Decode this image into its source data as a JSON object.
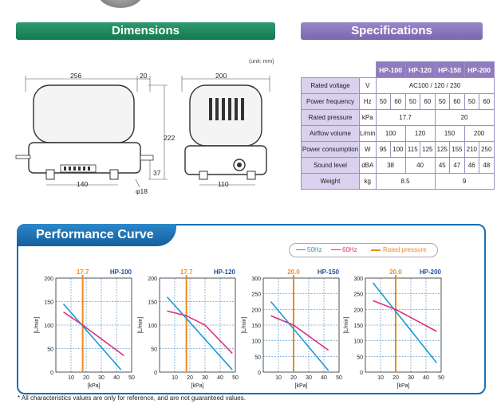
{
  "headers": {
    "dimensions": "Dimensions",
    "specifications": "Specifications",
    "performance": "Performance Curve"
  },
  "dimensions": {
    "unit": "(unit: mm)",
    "width_256": "256",
    "gap_20": "20",
    "depth_200": "200",
    "height_222": "222",
    "height_37": "37",
    "base_140": "140",
    "base_110": "110",
    "phi": "φ18"
  },
  "spec": {
    "models": [
      "HP-100",
      "HP-120",
      "HP-150",
      "HP-200"
    ],
    "rows": [
      {
        "label": "Rated voltage",
        "unit": "V",
        "cells": [
          "AC100 / 120 / 230"
        ],
        "span": [
          8
        ]
      },
      {
        "label": "Power frequency",
        "unit": "Hz",
        "cells": [
          "50",
          "60",
          "50",
          "60",
          "50",
          "60",
          "50",
          "60"
        ],
        "span": [
          1,
          1,
          1,
          1,
          1,
          1,
          1,
          1
        ]
      },
      {
        "label": "Rated pressure",
        "unit": "kPa",
        "cells": [
          "17.7",
          "20"
        ],
        "span": [
          4,
          4
        ]
      },
      {
        "label": "Airflow volume",
        "unit": "L/min",
        "cells": [
          "100",
          "120",
          "150",
          "200"
        ],
        "span": [
          2,
          2,
          2,
          2
        ]
      },
      {
        "label": "Power consumption",
        "unit": "W",
        "cells": [
          "95",
          "100",
          "115",
          "125",
          "125",
          "155",
          "210",
          "250"
        ],
        "span": [
          1,
          1,
          1,
          1,
          1,
          1,
          1,
          1
        ]
      },
      {
        "label": "Sound level",
        "unit": "dBA",
        "cells": [
          "38",
          "40",
          "45",
          "47",
          "46",
          "48"
        ],
        "span": [
          2,
          2,
          1,
          1,
          1,
          1
        ]
      },
      {
        "label": "Weight",
        "unit": "kg",
        "cells": [
          "8.5",
          "9"
        ],
        "span": [
          4,
          4
        ]
      }
    ]
  },
  "legend": {
    "hz50": "50Hz",
    "hz60": "60Hz",
    "rated": "Rated pressure"
  },
  "colors": {
    "hz50": "#1a9ad6",
    "hz60": "#e0307a",
    "rated": "#f08a1c",
    "grid": "#1b6fb4"
  },
  "footnote": "* All characteristics values are only for reference, and are not guaranteed values.",
  "chart_data": [
    {
      "type": "line",
      "title": "HP-100",
      "rated_pressure": 17.7,
      "rated_label": "17.7",
      "xlabel": "[kPa]",
      "ylabel": "[L/min]",
      "xlim": [
        0,
        50
      ],
      "ylim": [
        0,
        200
      ],
      "xticks": [
        10,
        20,
        30,
        40,
        50
      ],
      "yticks": [
        0,
        50,
        100,
        150,
        200
      ],
      "series": [
        {
          "name": "50Hz",
          "x": [
            5,
            43
          ],
          "y": [
            145,
            5
          ]
        },
        {
          "name": "60Hz",
          "x": [
            5,
            17.7,
            45
          ],
          "y": [
            128,
            100,
            35
          ]
        }
      ]
    },
    {
      "type": "line",
      "title": "HP-120",
      "rated_pressure": 17.7,
      "rated_label": "17.7",
      "xlabel": "[kPa]",
      "ylabel": "[L/min]",
      "xlim": [
        0,
        50
      ],
      "ylim": [
        0,
        200
      ],
      "xticks": [
        10,
        20,
        30,
        40,
        50
      ],
      "yticks": [
        0,
        50,
        100,
        150,
        200
      ],
      "series": [
        {
          "name": "50Hz",
          "x": [
            5,
            48
          ],
          "y": [
            160,
            5
          ]
        },
        {
          "name": "60Hz",
          "x": [
            5,
            17.7,
            30,
            48
          ],
          "y": [
            130,
            120,
            100,
            40
          ]
        }
      ]
    },
    {
      "type": "line",
      "title": "HP-150",
      "rated_pressure": 20.0,
      "rated_label": "20.0",
      "xlabel": "[kPa]",
      "ylabel": "[L/min]",
      "xlim": [
        0,
        50
      ],
      "ylim": [
        0,
        300
      ],
      "xticks": [
        10,
        20,
        30,
        40,
        50
      ],
      "yticks": [
        0,
        50,
        100,
        150,
        200,
        250,
        300
      ],
      "series": [
        {
          "name": "50Hz",
          "x": [
            5,
            43
          ],
          "y": [
            225,
            5
          ]
        },
        {
          "name": "60Hz",
          "x": [
            5,
            20,
            43
          ],
          "y": [
            180,
            150,
            70
          ]
        }
      ]
    },
    {
      "type": "line",
      "title": "HP-200",
      "rated_pressure": 20.0,
      "rated_label": "20.0",
      "xlabel": "[kPa]",
      "ylabel": "[L/min]",
      "xlim": [
        0,
        50
      ],
      "ylim": [
        0,
        300
      ],
      "xticks": [
        10,
        20,
        30,
        40,
        50
      ],
      "yticks": [
        0,
        50,
        100,
        150,
        200,
        250,
        300
      ],
      "series": [
        {
          "name": "50Hz",
          "x": [
            5,
            47
          ],
          "y": [
            285,
            30
          ]
        },
        {
          "name": "60Hz",
          "x": [
            5,
            20,
            47
          ],
          "y": [
            228,
            200,
            130
          ]
        }
      ]
    }
  ]
}
